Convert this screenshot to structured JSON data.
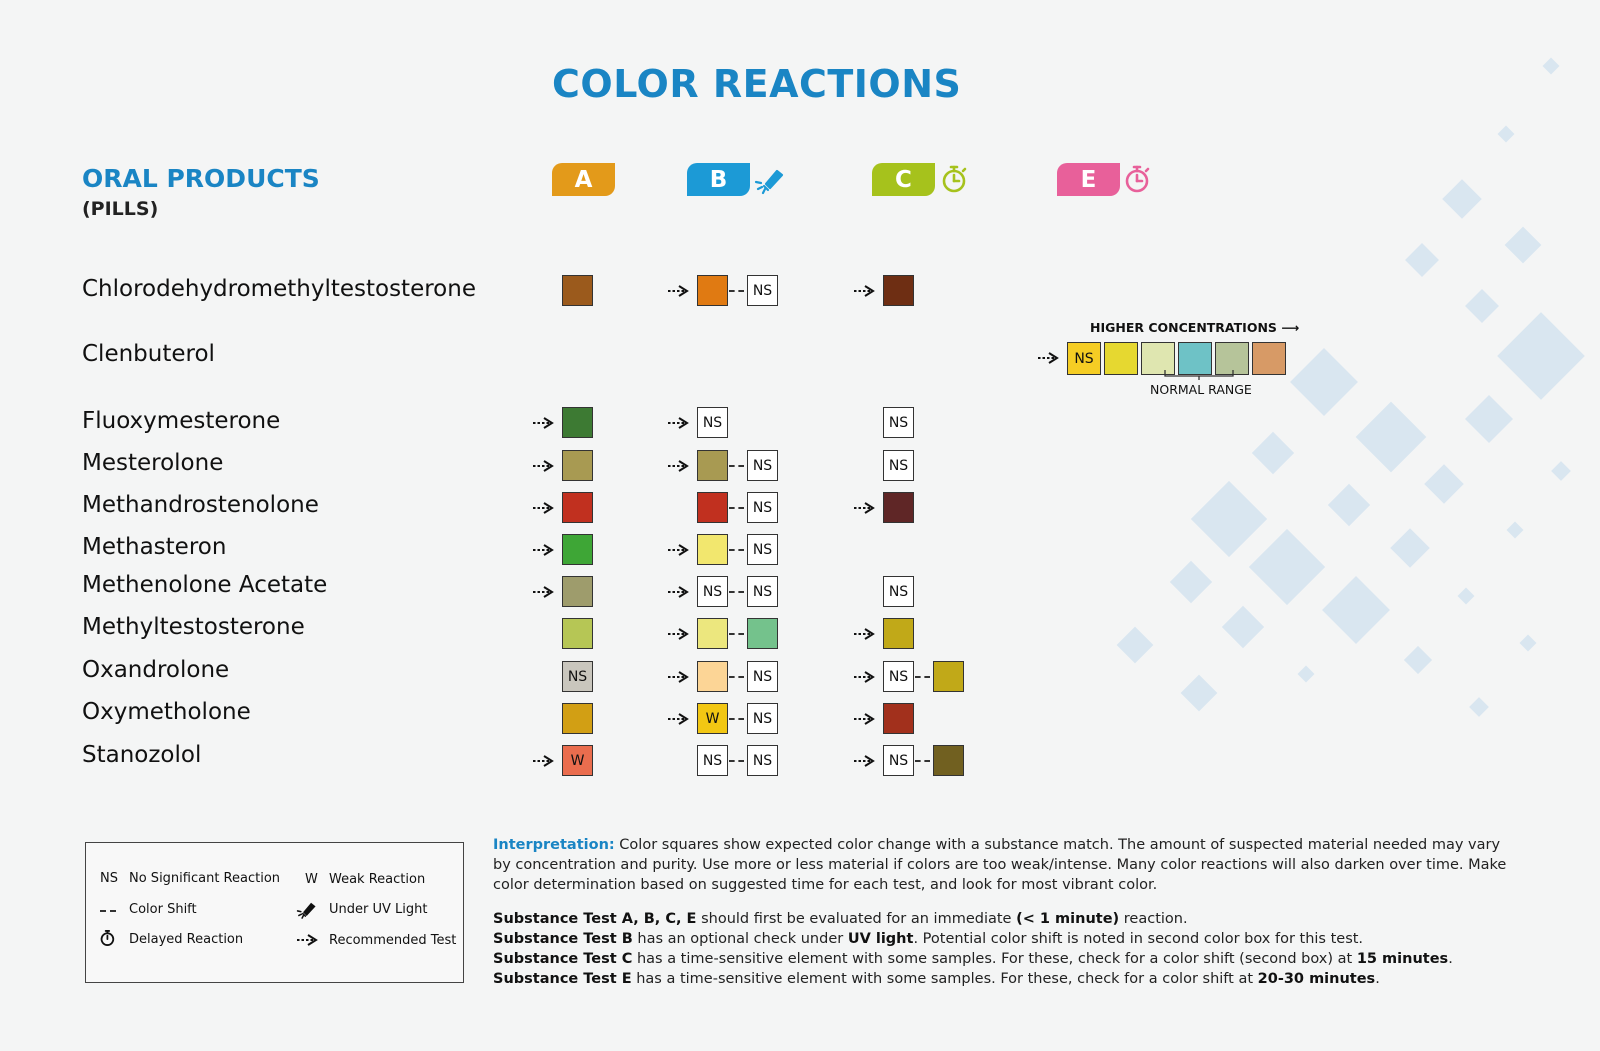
{
  "title": "COLOR REACTIONS",
  "section": {
    "title": "ORAL PRODUCTS",
    "subtitle": "(PILLS)"
  },
  "tests": [
    {
      "label": "A",
      "color": "#e39a1a",
      "icon": "none"
    },
    {
      "label": "B",
      "color": "#1c9ad6",
      "icon": "uv-flashlight-icon"
    },
    {
      "label": "C",
      "color": "#a6c21c",
      "icon": "stopwatch-icon"
    },
    {
      "label": "E",
      "color": "#e8609a",
      "icon": "stopwatch-icon"
    }
  ],
  "rows": [
    {
      "name": "Chlorodehydromethyltestosterone"
    },
    {
      "name": "Clenbuterol"
    },
    {
      "name": "Fluoxymesterone"
    },
    {
      "name": "Mesterolone"
    },
    {
      "name": "Methandrostenolone"
    },
    {
      "name": "Methasteron"
    },
    {
      "name": "Methenolone Acetate"
    },
    {
      "name": "Methyltestosterone"
    },
    {
      "name": "Oxandrolone"
    },
    {
      "name": "Oxymetholone"
    },
    {
      "name": "Stanozolol"
    }
  ],
  "reactions": {
    "Chlorodehydromethyltestosterone": {
      "A": {
        "rec": false,
        "boxes": [
          "#9b5a1c"
        ]
      },
      "B": {
        "rec": true,
        "boxes": [
          "#e07a12",
          "NS"
        ]
      },
      "C": {
        "rec": true,
        "boxes": [
          "#6e2e13"
        ]
      }
    },
    "Clenbuterol": {
      "E": {
        "rec": true,
        "boxes": [
          "NS",
          "#e6d830",
          "#dfe6b0",
          "#6ec2c6",
          "#b6c49a",
          "#d79a66"
        ],
        "ns_fill": "#f5cd24"
      }
    },
    "Fluoxymesterone": {
      "A": {
        "rec": true,
        "boxes": [
          "#3d7a33"
        ]
      },
      "B": {
        "rec": true,
        "boxes": [
          "NS"
        ]
      },
      "C": {
        "rec": false,
        "boxes": [
          "NS"
        ]
      }
    },
    "Mesterolone": {
      "A": {
        "rec": true,
        "boxes": [
          "#a89a52"
        ]
      },
      "B": {
        "rec": true,
        "boxes": [
          "#a89a52",
          "NS"
        ]
      },
      "C": {
        "rec": false,
        "boxes": [
          "NS"
        ]
      }
    },
    "Methandrostenolone": {
      "A": {
        "rec": true,
        "boxes": [
          "#c1301f"
        ]
      },
      "B": {
        "rec": false,
        "boxes": [
          "#c1301f",
          "NS"
        ]
      },
      "C": {
        "rec": true,
        "boxes": [
          "#5f2626"
        ]
      }
    },
    "Methasteron": {
      "A": {
        "rec": true,
        "boxes": [
          "#3ea636"
        ]
      },
      "B": {
        "rec": true,
        "boxes": [
          "#f2e76e",
          "NS"
        ]
      }
    },
    "Methenolone Acetate": {
      "A": {
        "rec": true,
        "boxes": [
          "#9e9c6c"
        ]
      },
      "B": {
        "rec": true,
        "boxes": [
          "NS",
          "NS"
        ]
      },
      "C": {
        "rec": false,
        "boxes": [
          "NS"
        ]
      }
    },
    "Methyltestosterone": {
      "A": {
        "rec": false,
        "boxes": [
          "#b6c655"
        ]
      },
      "B": {
        "rec": true,
        "boxes": [
          "#ece77e",
          "#74c28c"
        ]
      },
      "C": {
        "rec": true,
        "boxes": [
          "#c1a918"
        ]
      }
    },
    "Oxandrolone": {
      "A": {
        "rec": false,
        "boxes": [
          "NS"
        ],
        "ns_fill": "#c9c6bd"
      },
      "B": {
        "rec": true,
        "boxes": [
          "#fcd596",
          "NS"
        ]
      },
      "C": {
        "rec": true,
        "boxes": [
          "NS",
          "#c1a918"
        ]
      }
    },
    "Oxymetholone": {
      "A": {
        "rec": false,
        "boxes": [
          "#d29f14"
        ]
      },
      "B": {
        "rec": true,
        "boxes": [
          "W",
          "NS"
        ],
        "w_fill": "#f2c713"
      },
      "C": {
        "rec": true,
        "boxes": [
          "#a2301c"
        ]
      }
    },
    "Stanozolol": {
      "A": {
        "rec": true,
        "boxes": [
          "W"
        ],
        "w_fill": "#ea6d4e"
      },
      "B": {
        "rec": false,
        "boxes": [
          "NS",
          "NS"
        ]
      },
      "C": {
        "rec": true,
        "boxes": [
          "NS",
          "#716020"
        ]
      }
    }
  },
  "clenbuterol_scale": {
    "higher": "HIGHER CONCENTRATIONS",
    "normal": "NORMAL RANGE"
  },
  "legend": {
    "ns_sym": "NS",
    "ns_text": "No Significant Reaction",
    "w_sym": "W",
    "w_text": "Weak Reaction",
    "shift_text": "Color Shift",
    "uv_text": "Under UV Light",
    "delay_text": "Delayed Reaction",
    "rec_text": "Recommended Test"
  },
  "interpretation": {
    "label": "Interpretation:",
    "text": " Color squares show expected color change with a substance match. The amount of suspected material needed may vary by concentration and purity. Use more or less material if colors are too weak/intense. Many color reactions will also darken over time. Make color determination based on suggested time for each test, and look for most vibrant color."
  },
  "notes": [
    {
      "b1": "Substance Test A, B, C, E",
      "t1": " should first be evaluated for an immediate ",
      "b2": "(< 1 minute)",
      "t2": " reaction."
    },
    {
      "b1": "Substance Test B",
      "t1": " has an optional check under ",
      "b2": "UV light",
      "t2": ". Potential color shift is noted in second color box for this test."
    },
    {
      "b1": "Substance Test C",
      "t1": " has a time-sensitive element with some samples. For these, check for a color shift (second box) at ",
      "b2": "15 minutes",
      "t2": "."
    },
    {
      "b1": "Substance Test E",
      "t1": " has a time-sensitive element with some samples. For these, check for a color shift at ",
      "b2": "20-30 minutes",
      "t2": "."
    }
  ]
}
